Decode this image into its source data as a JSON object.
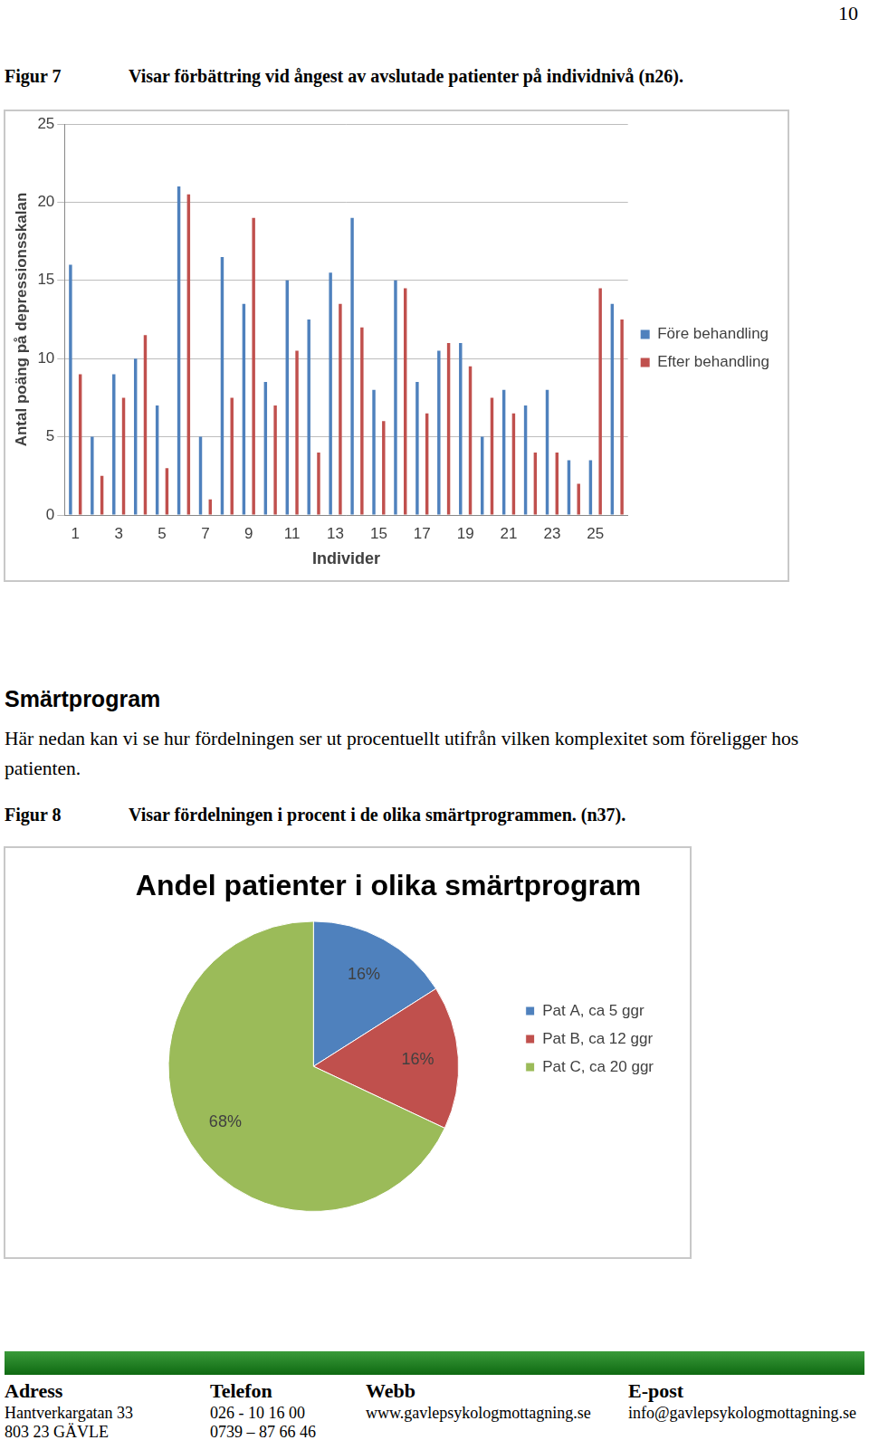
{
  "page_number": "10",
  "figures": [
    {
      "label": "Figur 7",
      "caption": "Visar förbättring vid ångest av avslutade patienter på individnivå (n26)."
    },
    {
      "label": "Figur 8",
      "caption": "Visar fördelningen i procent i de olika smärtprogrammen. (n37)."
    }
  ],
  "section": {
    "heading": "Smärtprogram",
    "text": "Här nedan kan vi se hur fördelningen ser ut procentuellt utifrån vilken komplexitet som föreligger hos patienten."
  },
  "footer": {
    "columns": [
      {
        "header": "Adress",
        "lines": [
          "Hantverkargatan 33",
          "803 23  GÄVLE"
        ]
      },
      {
        "header": "Telefon",
        "lines": [
          "026 - 10 16 00",
          "0739 – 87 66 46"
        ]
      },
      {
        "header": "Webb",
        "lines": [
          "www.gavlepsykologmottagning.se"
        ]
      },
      {
        "header": "E-post",
        "lines": [
          "info@gavlepsykologmottagning.se"
        ]
      }
    ]
  },
  "chart_data": [
    {
      "type": "bar",
      "x_label": "Individer",
      "y_label": "Antal poäng på depressionsskalan",
      "categories": [
        "1",
        null,
        "3",
        null,
        "5",
        null,
        "7",
        null,
        "9",
        null,
        "11",
        null,
        "13",
        null,
        "15",
        null,
        "17",
        null,
        "19",
        null,
        "21",
        null,
        "23",
        null,
        "25",
        null
      ],
      "series": [
        {
          "name": "Före behandling",
          "color": "#4f81bd",
          "values": [
            16,
            5,
            9,
            10,
            7,
            21,
            5,
            16.5,
            13.5,
            8.5,
            15,
            12.5,
            15.5,
            19,
            8,
            15,
            8.5,
            10.5,
            11,
            5,
            8,
            7,
            8,
            3.5,
            3.5,
            13.5
          ]
        },
        {
          "name": "Efter behandling",
          "color": "#c0504d",
          "values": [
            9,
            2.5,
            7.5,
            11.5,
            3,
            20.5,
            1,
            7.5,
            19,
            7,
            10.5,
            4,
            13.5,
            12,
            6,
            14.5,
            6.5,
            11,
            9.5,
            7.5,
            6.5,
            4,
            4,
            2,
            14.5,
            12.5
          ]
        }
      ],
      "ylim": [
        0,
        25
      ],
      "yticks": [
        0,
        5,
        10,
        15,
        20,
        25
      ],
      "grid": true,
      "legend": "right"
    },
    {
      "type": "pie",
      "title": "Andel patienter i olika smärtprogram",
      "categories": [
        "Pat A, ca 5 ggr",
        "Pat B, ca 12 ggr",
        "Pat C, ca 20 ggr"
      ],
      "values": [
        16,
        16,
        68
      ],
      "value_labels": [
        "16%",
        "16%",
        "68%"
      ],
      "colors": [
        "#4f81bd",
        "#c0504d",
        "#9bbb59"
      ],
      "data_labels": true,
      "legend": "right"
    }
  ]
}
